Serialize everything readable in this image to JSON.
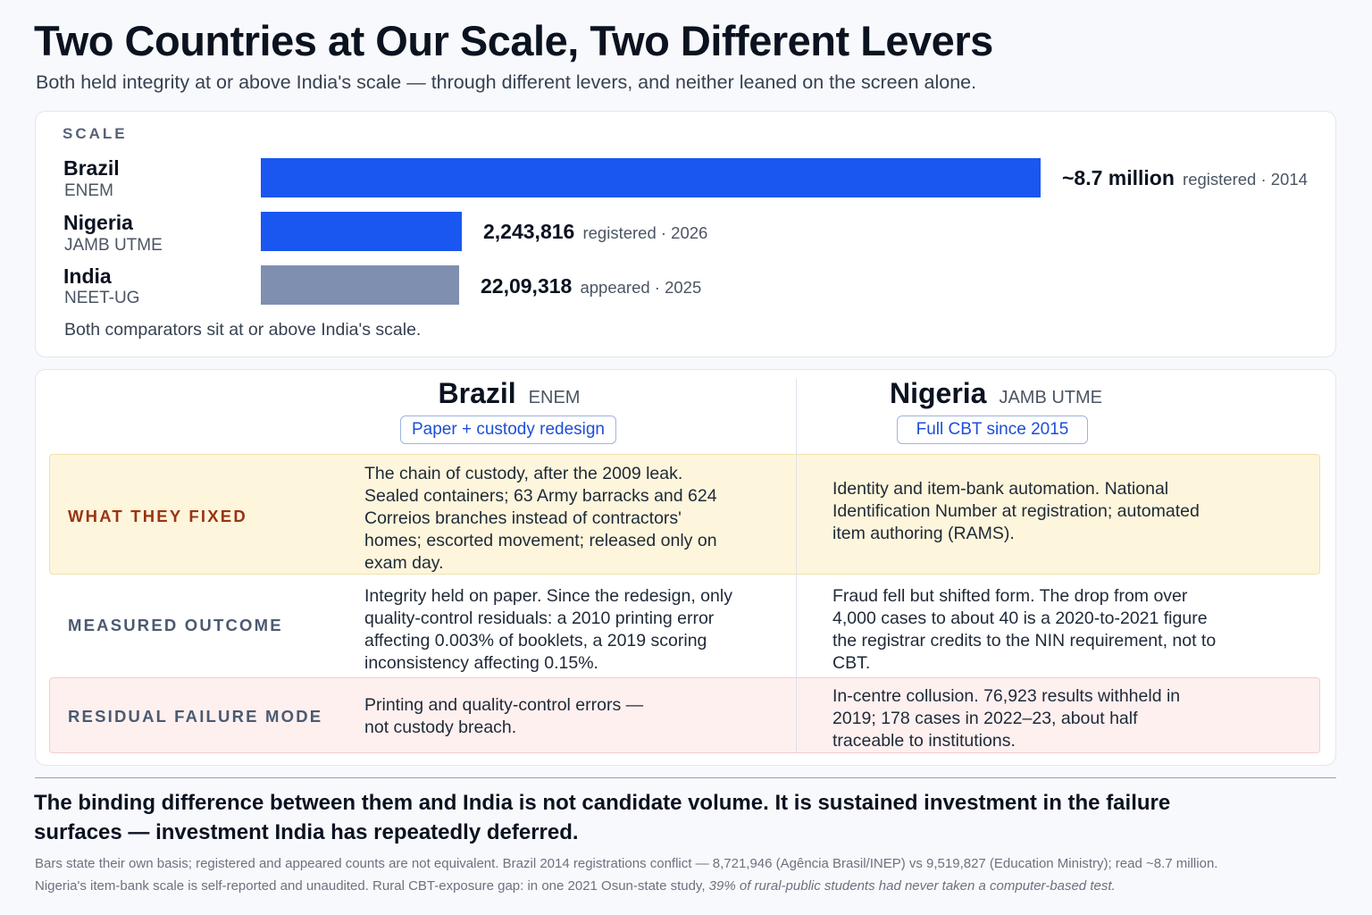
{
  "header": {
    "title": "Two Countries at Our Scale, Two Different Levers",
    "subtitle": "Both held integrity at or above India's scale — through different levers, and neither leaned on the screen alone."
  },
  "scale_panel": {
    "label": "SCALE",
    "note": "Both comparators sit at or above India's scale."
  },
  "chart_data": {
    "type": "bar",
    "orientation": "horizontal",
    "xlim": [
      0,
      8700000
    ],
    "series": [
      {
        "country": "Brazil",
        "exam": "ENEM",
        "value": 8700000,
        "value_label": "~8.7 million",
        "basis": "registered · 2014",
        "color": "#1a56f0"
      },
      {
        "country": "Nigeria",
        "exam": "JAMB UTME",
        "value": 2243816,
        "value_label": "2,243,816",
        "basis": "registered · 2026",
        "color": "#1a56f0"
      },
      {
        "country": "India",
        "exam": "NEET-UG",
        "value": 2209318,
        "value_label": "22,09,318",
        "basis": "appeared · 2025",
        "color": "#7f8fb0"
      }
    ]
  },
  "comparison": {
    "columns": [
      {
        "country": "Brazil",
        "exam": "ENEM",
        "pill": "Paper + custody redesign"
      },
      {
        "country": "Nigeria",
        "exam": "JAMB UTME",
        "pill": "Full CBT since 2015"
      }
    ],
    "rows": [
      {
        "label": "WHAT THEY FIXED",
        "label_color": "#9a3412",
        "brazil": "The chain of custody, after the 2009 leak. Sealed containers; 63 Army barracks and 624 Correios branches instead of contractors' homes; escorted movement; released only on exam day.",
        "nigeria": "Identity and item-bank automation. National Identification Number at registration; automated item authoring (RAMS)."
      },
      {
        "label": "MEASURED OUTCOME",
        "label_color": "#4b5a70",
        "brazil": "Integrity held on paper. Since the redesign, only quality-control residuals: a 2010 printing error affecting 0.003% of booklets, a 2019 scoring inconsistency affecting 0.15%.",
        "nigeria": "Fraud fell but shifted form. The drop from over 4,000 cases to about 40 is a 2020-to-2021 figure the registrar credits to the NIN requirement, not to CBT."
      },
      {
        "label": "RESIDUAL FAILURE MODE",
        "label_color": "#4b5a70",
        "brazil": "Printing and quality-control errors — not custody breach.",
        "nigeria": "In-centre collusion. 76,923 results withheld in 2019; 178 cases in 2022–23, about half traceable to institutions."
      }
    ]
  },
  "takeaway": "The binding difference between them and India is not candidate volume. It is sustained investment in the failure surfaces — investment India has repeatedly deferred.",
  "footnotes": {
    "line1": "Bars state their own basis; registered and appeared counts are not equivalent. Brazil 2014 registrations conflict — 8,721,946 (Agência Brasil/INEP) vs 9,519,827 (Education Ministry); read ~8.7 million.",
    "line2_plain": "Nigeria's item-bank scale is self-reported and unaudited. Rural CBT-exposure gap: in one 2021 Osun-state study, ",
    "line2_italic": "39% of rural-public students had never taken a computer-based test."
  }
}
